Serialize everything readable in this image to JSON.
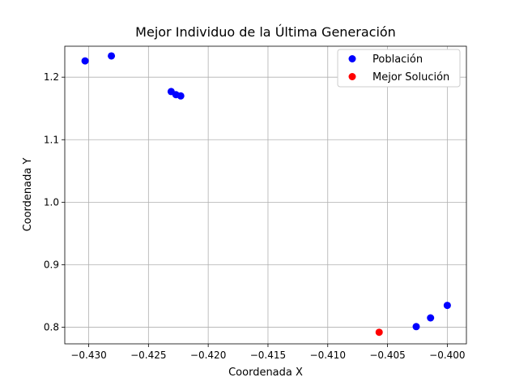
{
  "chart_data": {
    "type": "scatter",
    "title": "Mejor Individuo de la Última Generación",
    "xlabel": "Coordenada X",
    "ylabel": "Coordenada Y",
    "xlim": [
      -0.432,
      -0.3984
    ],
    "ylim": [
      0.7735,
      1.2495
    ],
    "xticks": [
      -0.43,
      -0.425,
      -0.42,
      -0.415,
      -0.41,
      -0.405,
      -0.4
    ],
    "xtick_labels": [
      "−0.430",
      "−0.425",
      "−0.420",
      "−0.415",
      "−0.410",
      "−0.405",
      "−0.400"
    ],
    "yticks": [
      0.8,
      0.9,
      1.0,
      1.1,
      1.2
    ],
    "ytick_labels": [
      "0.8",
      "0.9",
      "1.0",
      "1.1",
      "1.2"
    ],
    "grid": true,
    "legend_position": "top-right",
    "series": [
      {
        "name": "Población",
        "color": "#0000ff",
        "points": [
          [
            -0.4303,
            1.226
          ],
          [
            -0.4281,
            1.234
          ],
          [
            -0.4231,
            1.177
          ],
          [
            -0.4227,
            1.172
          ],
          [
            -0.4223,
            1.17
          ],
          [
            -0.4026,
            0.801
          ],
          [
            -0.4014,
            0.815
          ],
          [
            -0.4,
            0.835
          ]
        ]
      },
      {
        "name": "Mejor Solución",
        "color": "#ff0000",
        "points": [
          [
            -0.4057,
            0.792
          ]
        ]
      }
    ]
  }
}
